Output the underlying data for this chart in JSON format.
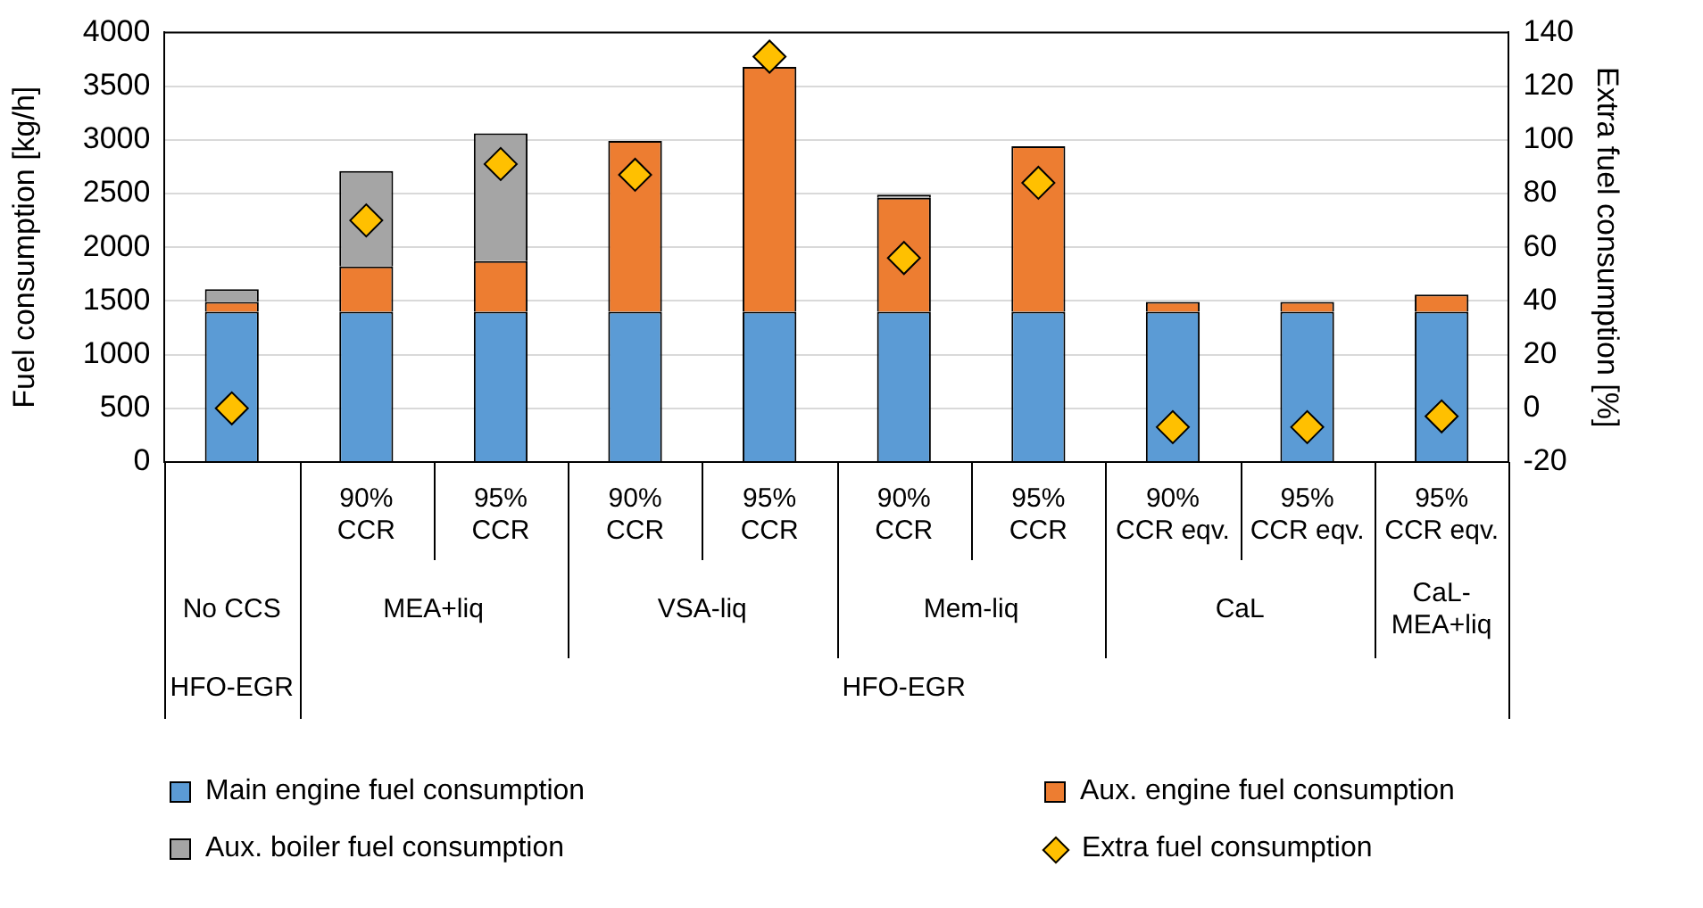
{
  "chart_data": {
    "type": "bar",
    "stacked": true,
    "categories": [
      null,
      "90% CCR",
      "95% CCR",
      "90% CCR",
      "95% CCR",
      "90% CCR",
      "95% CCR",
      "90% CCR eqv.",
      "95% CCR eqv.",
      "95% CCR eqv."
    ],
    "series": [
      {
        "name": "Main engine fuel consumption",
        "color": "#5b9bd5",
        "values": [
          1400,
          1400,
          1400,
          1400,
          1400,
          1400,
          1400,
          1400,
          1400,
          1400
        ]
      },
      {
        "name": "Aux. engine fuel consumption",
        "color": "#ed7d31",
        "values": [
          90,
          420,
          470,
          1590,
          2280,
          1060,
          1540,
          90,
          90,
          160
        ]
      },
      {
        "name": "Aux. boiler fuel consumption",
        "color": "#a5a5a5",
        "values": [
          120,
          890,
          1190,
          null,
          null,
          30,
          null,
          null,
          null,
          null
        ]
      },
      {
        "name": "Extra fuel consumption",
        "type": "scatter",
        "axis": "y2",
        "marker": "diamond",
        "color": "#ffc000",
        "values": [
          0,
          70,
          91,
          87,
          131,
          56,
          84,
          -7,
          -7,
          -3
        ]
      }
    ],
    "ylabel": "Fuel consumption [kg/h]",
    "y2label": "Extra fuel consumption [%]",
    "ylim": [
      0,
      4000
    ],
    "yticks": [
      0,
      500,
      1000,
      1500,
      2000,
      2500,
      3000,
      3500,
      4000
    ],
    "y2lim": [
      -20,
      140
    ],
    "y2ticks": [
      -20,
      0,
      20,
      40,
      60,
      80,
      100,
      120,
      140
    ],
    "annotations": [
      "No CCS",
      "MEA+liq",
      "VSA-liq",
      "Mem-liq",
      "CaL",
      "CaL-MEA+liq",
      "HFO-EGR",
      "HFO-EGR"
    ],
    "grid": "y",
    "legend": "bottom"
  }
}
